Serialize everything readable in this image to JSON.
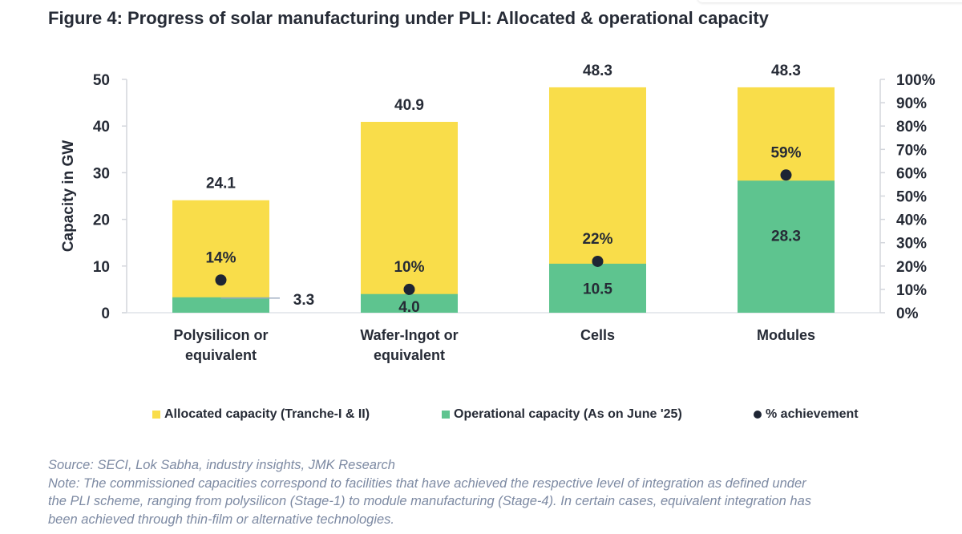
{
  "title": "Figure 4: Progress of solar manufacturing under PLI: Allocated & operational capacity",
  "chart_data": {
    "type": "bar",
    "subtype": "overlapped-bar-with-dot-secondary-axis",
    "title": "Figure 4: Progress of solar manufacturing under PLI: Allocated & operational capacity",
    "categories": [
      "Polysilicon or equivalent",
      "Wafer-Ingot or equivalent",
      "Cells",
      "Modules"
    ],
    "category_lines": [
      [
        "Polysilicon or",
        "equivalent"
      ],
      [
        "Wafer-Ingot or",
        "equivalent"
      ],
      [
        "Cells"
      ],
      [
        "Modules"
      ]
    ],
    "series": [
      {
        "name": "Allocated capacity (Tranche-I & II)",
        "axis": "left",
        "color": "#f9dd4a",
        "values": [
          24.1,
          40.9,
          48.3,
          48.3
        ],
        "labels": [
          "24.1",
          "40.9",
          "48.3",
          "48.3"
        ]
      },
      {
        "name": "Operational capacity (As on June '25)",
        "axis": "left",
        "color": "#5ec48f",
        "values": [
          3.3,
          4.0,
          10.5,
          28.3
        ],
        "labels": [
          "3.3",
          "4.0",
          "10.5",
          "28.3"
        ]
      },
      {
        "name": "% achievement",
        "axis": "right",
        "color": "#1e2534",
        "values": [
          14,
          10,
          22,
          59
        ],
        "labels": [
          "14%",
          "10%",
          "22%",
          "59%"
        ]
      }
    ],
    "ylabel": "Capacity in GW",
    "ylim": [
      0,
      50
    ],
    "yticks": [
      "0",
      "10",
      "20",
      "30",
      "40",
      "50"
    ],
    "y2lim": [
      0,
      100
    ],
    "y2ticks": [
      "0%",
      "10%",
      "20%",
      "30%",
      "40%",
      "50%",
      "60%",
      "70%",
      "80%",
      "90%",
      "100%"
    ],
    "xlabel": "",
    "grid": false,
    "legend_position": "bottom"
  },
  "legend": [
    {
      "label": "Allocated capacity (Tranche-I & II)",
      "color": "#f9dd4a",
      "marker": "square"
    },
    {
      "label": "Operational capacity (As on June '25)",
      "color": "#5ec48f",
      "marker": "square"
    },
    {
      "label": "% achievement",
      "color": "#1e2534",
      "marker": "dot"
    }
  ],
  "notes": {
    "source": "Source: SECI, Lok Sabha, industry insights, JMK Research",
    "note_lines": [
      "Note: The commissioned capacities correspond to facilities that have achieved the respective level of integration as defined under",
      "the PLI scheme, ranging from polysilicon (Stage-1) to module manufacturing (Stage-4). In certain cases, equivalent integration has",
      "been achieved through thin-film or alternative technologies."
    ]
  }
}
